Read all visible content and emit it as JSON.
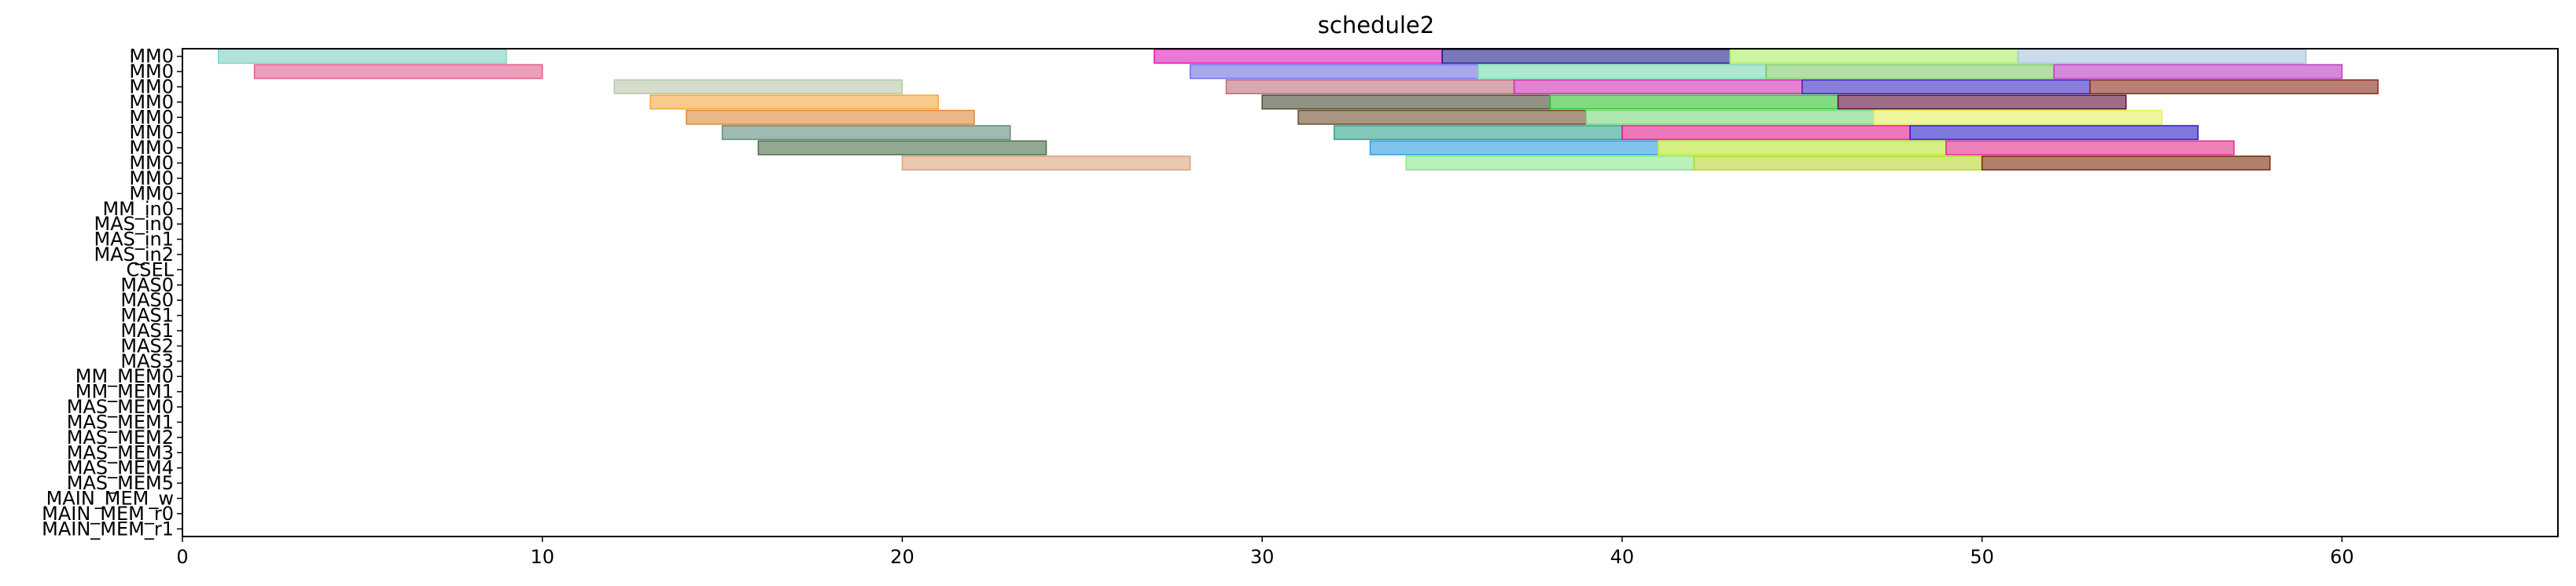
{
  "chart_data": {
    "type": "gantt",
    "title": "schedule2",
    "xlabel": "",
    "ylabel": "",
    "xlim": [
      0,
      66
    ],
    "xticks": [
      0,
      10,
      20,
      30,
      40,
      50,
      60
    ],
    "grid": false,
    "rows": [
      "MM0",
      "MM0",
      "MM0",
      "MM0",
      "MM0",
      "MM0",
      "MM0",
      "MM0",
      "MM0",
      "MM0",
      "MM_in0",
      "MAS_in0",
      "MAS_in1",
      "MAS_in2",
      "CSEL",
      "MAS0",
      "MAS0",
      "MAS1",
      "MAS1",
      "MAS2",
      "MAS3",
      "MM_MEM0",
      "MM_MEM1",
      "MAS_MEM0",
      "MAS_MEM1",
      "MAS_MEM2",
      "MAS_MEM3",
      "MAS_MEM4",
      "MAS_MEM5",
      "MAIN_MEM_w",
      "MAIN_MEM_r0",
      "MAIN_MEM_r1"
    ],
    "tasks": [
      {
        "row": 0,
        "start": 1,
        "end": 9,
        "color": "#7fd1c3"
      },
      {
        "row": 0,
        "start": 27,
        "end": 35,
        "color": "#e11cb8"
      },
      {
        "row": 0,
        "start": 35,
        "end": 43,
        "color": "#1c1c8c"
      },
      {
        "row": 0,
        "start": 43,
        "end": 51,
        "color": "#a9ee5f"
      },
      {
        "row": 0,
        "start": 51,
        "end": 59,
        "color": "#a7c4e0"
      },
      {
        "row": 1,
        "start": 2,
        "end": 10,
        "color": "#e35c8e"
      },
      {
        "row": 1,
        "start": 28,
        "end": 36,
        "color": "#6e6ee6"
      },
      {
        "row": 1,
        "start": 36,
        "end": 44,
        "color": "#77d9b0"
      },
      {
        "row": 1,
        "start": 44,
        "end": 52,
        "color": "#7fc96a"
      },
      {
        "row": 1,
        "start": 52,
        "end": 60,
        "color": "#b93cc0"
      },
      {
        "row": 2,
        "start": 12,
        "end": 20,
        "color": "#b8c8a8"
      },
      {
        "row": 2,
        "start": 29,
        "end": 37,
        "color": "#c06c7c"
      },
      {
        "row": 2,
        "start": 37,
        "end": 45,
        "color": "#d12fb4"
      },
      {
        "row": 2,
        "start": 45,
        "end": 53,
        "color": "#3a28c0"
      },
      {
        "row": 2,
        "start": 53,
        "end": 61,
        "color": "#8c2c1c"
      },
      {
        "row": 3,
        "start": 13,
        "end": 21,
        "color": "#f5a73a"
      },
      {
        "row": 3,
        "start": 30,
        "end": 38,
        "color": "#4a4a32"
      },
      {
        "row": 3,
        "start": 38,
        "end": 46,
        "color": "#31c131"
      },
      {
        "row": 3,
        "start": 46,
        "end": 54,
        "color": "#5c0c38"
      },
      {
        "row": 4,
        "start": 14,
        "end": 22,
        "color": "#dd8a3a"
      },
      {
        "row": 4,
        "start": 31,
        "end": 39,
        "color": "#6e4e2e"
      },
      {
        "row": 4,
        "start": 39,
        "end": 47,
        "color": "#7cd77c"
      },
      {
        "row": 4,
        "start": 47,
        "end": 55,
        "color": "#e6ee5f"
      },
      {
        "row": 5,
        "start": 15,
        "end": 23,
        "color": "#5f8c7c"
      },
      {
        "row": 5,
        "start": 32,
        "end": 40,
        "color": "#2fa48c"
      },
      {
        "row": 5,
        "start": 40,
        "end": 48,
        "color": "#e31c8c"
      },
      {
        "row": 5,
        "start": 48,
        "end": 56,
        "color": "#2c1cc8"
      },
      {
        "row": 6,
        "start": 16,
        "end": 24,
        "color": "#4a6e4a"
      },
      {
        "row": 6,
        "start": 33,
        "end": 41,
        "color": "#2c9ce0"
      },
      {
        "row": 6,
        "start": 41,
        "end": 49,
        "color": "#b9e62c"
      },
      {
        "row": 6,
        "start": 49,
        "end": 57,
        "color": "#e32c8c"
      },
      {
        "row": 7,
        "start": 20,
        "end": 28,
        "color": "#dca27c"
      },
      {
        "row": 7,
        "start": 34,
        "end": 42,
        "color": "#8ce68c"
      },
      {
        "row": 7,
        "start": 42,
        "end": 50,
        "color": "#b9d72c"
      },
      {
        "row": 7,
        "start": 50,
        "end": 58,
        "color": "#7c2c0c"
      }
    ]
  }
}
